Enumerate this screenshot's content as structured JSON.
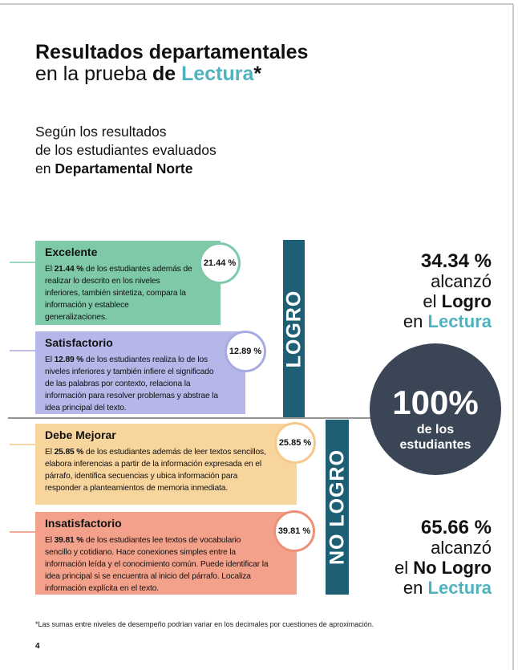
{
  "header": {
    "line1": [
      {
        "text": "Resultados departamentales",
        "bold": true
      }
    ],
    "line2": [
      {
        "text": "en la prueba "
      },
      {
        "text": "de ",
        "bold": true
      },
      {
        "text": "Lectura",
        "bold": true,
        "accent": true
      },
      {
        "text": "*",
        "bold": true
      }
    ]
  },
  "subtitle": [
    [
      {
        "text": "Según los resultados"
      }
    ],
    [
      {
        "text": "de los estudiantes evaluados"
      }
    ],
    [
      {
        "text": "en "
      },
      {
        "text": "Departamental Norte",
        "bold": true
      }
    ]
  ],
  "levels": [
    {
      "name": "Excelente",
      "percent": "21.44 %",
      "color": "#7ec9a8",
      "line": "#7ec9a8",
      "description": [
        {
          "text": "El "
        },
        {
          "text": "21.44 %",
          "bold": true
        },
        {
          "text": " de los estudiantes además de realizar lo descrito en los niveles inferiores, también sintetiza, compara la información y establece generalizaciones."
        }
      ]
    },
    {
      "name": "Satisfactorio",
      "percent": "12.89 %",
      "color": "#b4b7e8",
      "line": "#a8abe0",
      "description": [
        {
          "text": "El "
        },
        {
          "text": "12.89 %",
          "bold": true
        },
        {
          "text": " de los estudiantes realiza lo de los niveles inferiores y también infiere el significado de las palabras por contexto, relaciona la información para resolver problemas y abstrae la idea principal del texto."
        }
      ]
    },
    {
      "name": "Debe Mejorar",
      "percent": "25.85 %",
      "color": "#f9d59e",
      "line": "#f5c98a",
      "description": [
        {
          "text": "El "
        },
        {
          "text": "25.85 %",
          "bold": true
        },
        {
          "text": " de los estudiantes además de leer textos sencillos, elabora inferencias a partir de la información expresada en el párrafo, identifica secuencias y ubica información para responder a planteamientos de memoria inmediata."
        }
      ]
    },
    {
      "name": "Insatisfactorio",
      "percent": "39.81 %",
      "color": "#f3a18a",
      "line": "#ee8f77",
      "description": [
        {
          "text": "El "
        },
        {
          "text": "39.81 %",
          "bold": true
        },
        {
          "text": " de los estudiantes lee textos de vocabulario sencillo y cotidiano. Hace conexiones simples entre la información leída y el conocimiento común. Puede identificar la idea principal si se encuentra al inicio del párrafo. Localiza información explícita en el texto."
        }
      ]
    }
  ],
  "groups": [
    {
      "label": "LOGRO",
      "summary": [
        [
          {
            "text": "34.34 %",
            "bold": true
          }
        ],
        [
          {
            "text": "alcanzó"
          }
        ],
        [
          {
            "text": "el "
          },
          {
            "text": "Logro",
            "bold": true
          }
        ],
        [
          {
            "text": "en "
          },
          {
            "text": "Lectura",
            "bold": true,
            "accent": true
          }
        ]
      ]
    },
    {
      "label": "NO LOGRO",
      "summary": [
        [
          {
            "text": "65.66 %",
            "bold": true
          }
        ],
        [
          {
            "text": "alcanzó"
          }
        ],
        [
          {
            "text": "el "
          },
          {
            "text": "No Logro",
            "bold": true
          }
        ],
        [
          {
            "text": "en "
          },
          {
            "text": "Lectura",
            "bold": true,
            "accent": true
          }
        ]
      ]
    }
  ],
  "total": {
    "value": "100%",
    "line1": "de los",
    "line2": "estudiantes"
  },
  "footnote": "*Las sumas entre niveles de desempeño podrían variar en los decimales por cuestiones de aproximación.",
  "page_number": "4"
}
